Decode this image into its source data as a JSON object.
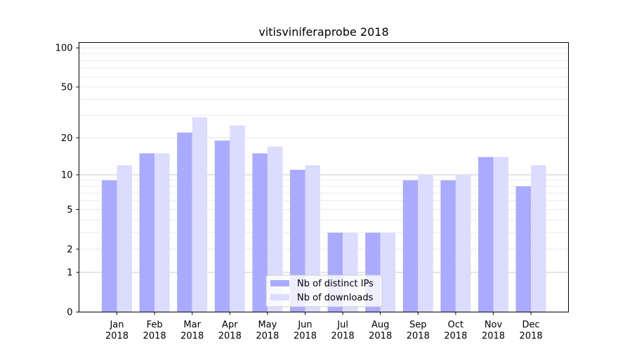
{
  "chart_data": {
    "type": "bar",
    "title": "vitisviniferaprobe 2018",
    "xlabel": "",
    "ylabel": "",
    "y_scale": "log(1+y)",
    "ylim": [
      0,
      110
    ],
    "y_ticks": [
      0,
      1,
      2,
      5,
      10,
      20,
      50,
      100
    ],
    "grid": true,
    "legend_position": "lower center",
    "categories": [
      [
        "Jan",
        "2018"
      ],
      [
        "Feb",
        "2018"
      ],
      [
        "Mar",
        "2018"
      ],
      [
        "Apr",
        "2018"
      ],
      [
        "May",
        "2018"
      ],
      [
        "Jun",
        "2018"
      ],
      [
        "Jul",
        "2018"
      ],
      [
        "Aug",
        "2018"
      ],
      [
        "Sep",
        "2018"
      ],
      [
        "Oct",
        "2018"
      ],
      [
        "Nov",
        "2018"
      ],
      [
        "Dec",
        "2018"
      ]
    ],
    "series": [
      {
        "name": "Nb of distinct IPs",
        "color": "#aaaaff",
        "values": [
          9,
          15,
          22,
          19,
          15,
          11,
          3,
          3,
          9,
          9,
          14,
          8
        ]
      },
      {
        "name": "Nb of downloads",
        "color": "#dcdcff",
        "values": [
          12,
          15,
          29,
          25,
          17,
          12,
          3,
          3,
          10,
          10,
          14,
          12
        ]
      }
    ]
  }
}
